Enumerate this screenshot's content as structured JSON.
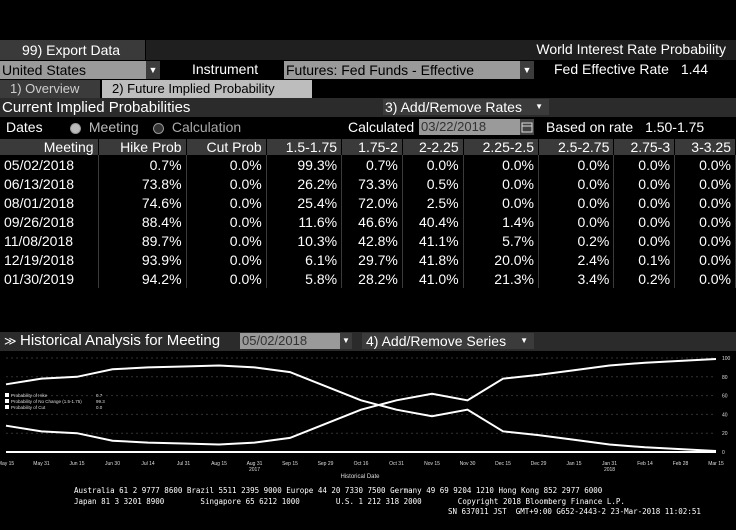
{
  "toolbar": {
    "export_label": "99) Export Data",
    "title": "World Interest Rate Probability"
  },
  "selectors": {
    "country": "United States",
    "instrument_label": "Instrument",
    "instrument": "Futures: Fed Funds - Effective",
    "rate_label": "Fed Effective Rate",
    "rate_value": "1.44"
  },
  "tabs": [
    {
      "label": "1) Overview"
    },
    {
      "label": "2) Future Implied Probability"
    }
  ],
  "section": {
    "title": "Current Implied Probabilities",
    "add_rates_label": "3) Add/Remove Rates",
    "dates_label": "Dates",
    "meeting_label": "Meeting",
    "calculation_label": "Calculation",
    "calculated_label": "Calculated",
    "calculated_date": "03/22/2018",
    "based_on_label": "Based on rate",
    "based_on_value": "1.50-1.75"
  },
  "table": {
    "headers": [
      "Meeting",
      "Hike Prob",
      "Cut Prob",
      "1.5-1.75",
      "1.75-2",
      "2-2.25",
      "2.25-2.5",
      "2.5-2.75",
      "2.75-3",
      "3-3.25"
    ],
    "rows": [
      [
        "05/02/2018",
        "0.7%",
        "0.0%",
        "99.3%",
        "0.7%",
        "0.0%",
        "0.0%",
        "0.0%",
        "0.0%",
        "0.0%"
      ],
      [
        "06/13/2018",
        "73.8%",
        "0.0%",
        "26.2%",
        "73.3%",
        "0.5%",
        "0.0%",
        "0.0%",
        "0.0%",
        "0.0%"
      ],
      [
        "08/01/2018",
        "74.6%",
        "0.0%",
        "25.4%",
        "72.0%",
        "2.5%",
        "0.0%",
        "0.0%",
        "0.0%",
        "0.0%"
      ],
      [
        "09/26/2018",
        "88.4%",
        "0.0%",
        "11.6%",
        "46.6%",
        "40.4%",
        "1.4%",
        "0.0%",
        "0.0%",
        "0.0%"
      ],
      [
        "11/08/2018",
        "89.7%",
        "0.0%",
        "10.3%",
        "42.8%",
        "41.1%",
        "5.7%",
        "0.2%",
        "0.0%",
        "0.0%"
      ],
      [
        "12/19/2018",
        "93.9%",
        "0.0%",
        "6.1%",
        "29.7%",
        "41.8%",
        "20.0%",
        "2.4%",
        "0.1%",
        "0.0%"
      ],
      [
        "01/30/2019",
        "94.2%",
        "0.0%",
        "5.8%",
        "28.2%",
        "41.0%",
        "21.3%",
        "3.4%",
        "0.2%",
        "0.0%"
      ]
    ]
  },
  "historical": {
    "title": "Historical Analysis for Meeting",
    "meeting": "05/02/2018",
    "add_series_label": "4) Add/Remove Series"
  },
  "chart_data": {
    "type": "line",
    "x": [
      "May 15",
      "May 31",
      "Jun 15",
      "Jun 30",
      "Jul 14",
      "Jul 31",
      "Aug 15",
      "Aug 31",
      "Sep 15",
      "Sep 29",
      "Oct 16",
      "Oct 31",
      "Nov 15",
      "Nov 30",
      "Dec 15",
      "Dec 29",
      "Jan 15",
      "Jan 31",
      "Feb 14",
      "Feb 28",
      "Mar 15"
    ],
    "year_labels": [
      "2017",
      "2018"
    ],
    "xlabel": "Historical Date",
    "ylim": [
      0,
      100
    ],
    "yticks": [
      "100",
      "80",
      "60",
      "40",
      "20",
      "0"
    ],
    "legend": [
      {
        "name": "Probability of Hike",
        "value": "0.7"
      },
      {
        "name": "Probability of No Change (1.5-1.75)",
        "value": "99.3"
      },
      {
        "name": "Probability of Cut",
        "value": "0.0"
      }
    ],
    "series": [
      {
        "name": "Probability of Hike",
        "values": [
          72,
          78,
          80,
          88,
          90,
          91,
          92,
          90,
          85,
          70,
          55,
          45,
          38,
          45,
          22,
          18,
          13,
          8,
          5,
          3,
          1
        ]
      },
      {
        "name": "Probability of No Change (1.5-1.75)",
        "values": [
          28,
          22,
          20,
          12,
          10,
          9,
          8,
          10,
          15,
          30,
          45,
          55,
          62,
          55,
          78,
          82,
          87,
          92,
          95,
          97,
          99
        ]
      },
      {
        "name": "Probability of Cut",
        "values": [
          0,
          0,
          0,
          0,
          0,
          0,
          0,
          0,
          0,
          0,
          0,
          0,
          0,
          0,
          0,
          0,
          0,
          0,
          0,
          0,
          0
        ]
      }
    ],
    "colors": {
      "line": "#ffffff"
    }
  },
  "footer": {
    "line1": "Australia 61 2 9777 8600 Brazil 5511 2395 9000 Europe 44 20 7330 7500 Germany 49 69 9204 1210 Hong Kong 852 2977 6000",
    "line2": "Japan 81 3 3201 8900        Singapore 65 6212 1000        U.S. 1 212 318 2000        Copyright 2018 Bloomberg Finance L.P.",
    "line3": "SN 637011 JST  GMT+9:00 G652-2443-2 23-Mar-2018 11:02:51"
  }
}
